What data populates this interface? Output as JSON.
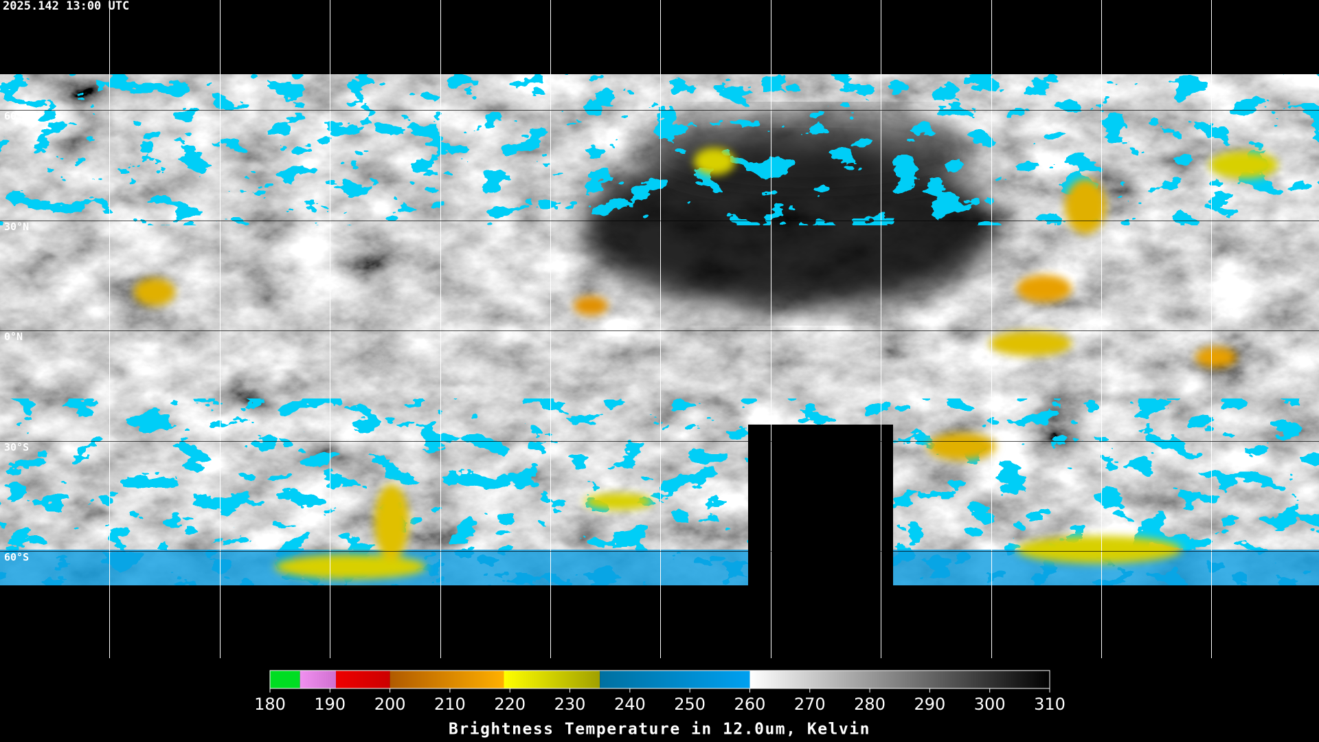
{
  "header": {
    "timestamp": "2025.142 13:00 UTC"
  },
  "latitude_labels": [
    "60°N",
    "30°N",
    "0°N",
    "30°S",
    "60°S"
  ],
  "colorbar": {
    "title": "Brightness Temperature in 12.0um, Kelvin",
    "range": [
      180,
      310
    ],
    "ticks": [
      180,
      190,
      200,
      210,
      220,
      230,
      240,
      250,
      260,
      270,
      280,
      290,
      300,
      310
    ],
    "segments": [
      {
        "from": 180,
        "to": 185,
        "colors": [
          "#00dd22",
          "#00dd22"
        ]
      },
      {
        "from": 185,
        "to": 191,
        "colors": [
          "#f090f0",
          "#d070d0"
        ]
      },
      {
        "from": 191,
        "to": 200,
        "colors": [
          "#ee0000",
          "#cc0000"
        ]
      },
      {
        "from": 200,
        "to": 219,
        "colors": [
          "#b05a00",
          "#ffb000"
        ]
      },
      {
        "from": 219,
        "to": 235,
        "colors": [
          "#ffff00",
          "#a0a000"
        ]
      },
      {
        "from": 235,
        "to": 260,
        "colors": [
          "#0070a0",
          "#00a0f0"
        ]
      },
      {
        "from": 260,
        "to": 310,
        "colors": [
          "#ffffff",
          "#000000"
        ]
      }
    ]
  }
}
